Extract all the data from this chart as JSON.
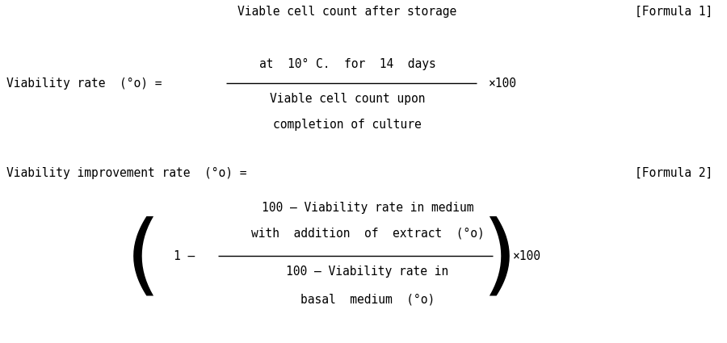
{
  "background_color": "#ffffff",
  "text_color": "#000000",
  "font_size": 10.5,
  "fig_width": 9.0,
  "fig_height": 4.25,
  "formula1_label": "[Formula 1]",
  "formula2_label": "[Formula 2]",
  "viability_rate_label": "Viability rate  (°o) =",
  "viability_improvement_label": "Viability improvement rate  (°o) =",
  "numerator1_line1": "Viable cell count after storage",
  "numerator1_line2": "at  10° C.  for  14  days",
  "denominator1_line1": "Viable cell count upon",
  "denominator1_line2": "completion of culture",
  "times100": "×100",
  "numerator2_line1": "100 – Viability rate in medium",
  "numerator2_line2": "with  addition  of  extract  (°o)",
  "denominator2_line1": "100 – Viability rate in",
  "denominator2_line2": "basal  medium  (°o)",
  "one_minus": "1 –",
  "times100_2": "×100"
}
